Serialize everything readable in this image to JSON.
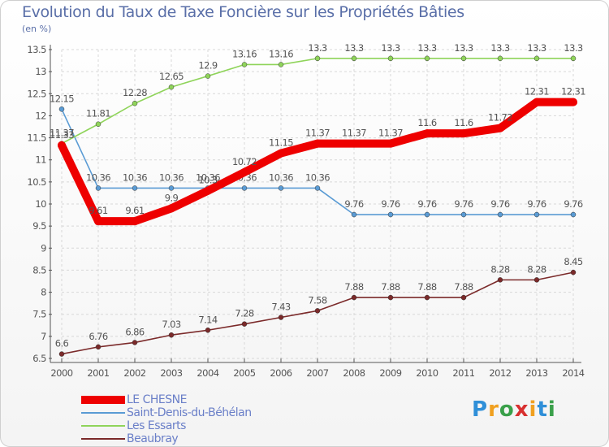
{
  "colors": {
    "title": "#5a6fa8",
    "axis": "#555555",
    "grid": "#d8d8d8",
    "label": "#555555"
  },
  "brand": {
    "text": "Proxiti",
    "letters": [
      "P",
      "r",
      "o",
      "x",
      "i",
      "t",
      "i"
    ],
    "colors": [
      "#2f8fd8",
      "#f0a020",
      "#3aa04a",
      "#d83030",
      "#f0a020",
      "#2f8fd8",
      "#3aa04a"
    ]
  },
  "chart_data": {
    "type": "line",
    "title": "Evolution du Taux de Taxe Foncière sur les Propriétés Bâties",
    "ylabel": "(en %)",
    "xlabel": "",
    "x": [
      "2000",
      "2001",
      "2002",
      "2003",
      "2004",
      "2005",
      "2006",
      "2007",
      "2008",
      "2009",
      "2010",
      "2011",
      "2012",
      "2013",
      "2014"
    ],
    "ylim": [
      6.5,
      13.5
    ],
    "yticks": [
      "6.5",
      "7",
      "7.5",
      "8",
      "8.5",
      "9",
      "9.5",
      "10",
      "10.5",
      "11",
      "11.5",
      "12",
      "12.5",
      "13",
      "13.5"
    ],
    "grid": true,
    "legend_position": "bottom-left",
    "series": [
      {
        "name": "Beaubray",
        "color": "#7b2a2a",
        "values": [
          6.6,
          6.76,
          6.86,
          7.03,
          7.14,
          7.28,
          7.43,
          7.58,
          7.88,
          7.88,
          7.88,
          7.88,
          8.28,
          8.28,
          8.45
        ],
        "labels": [
          "6.6",
          "6.76",
          "6.86",
          "7.03",
          "7.14",
          "7.28",
          "7.43",
          "7.58",
          "7.88",
          "7.88",
          "7.88",
          "7.88",
          "8.28",
          "8.28",
          "8.45"
        ]
      },
      {
        "name": "Saint-Denis-du-Béhélan",
        "color": "#5a9bd4",
        "values": [
          12.15,
          10.36,
          10.36,
          10.36,
          10.36,
          10.36,
          10.36,
          10.36,
          9.76,
          9.76,
          9.76,
          9.76,
          9.76,
          9.76,
          9.76
        ],
        "labels": [
          "12.15",
          "10.36",
          "10.36",
          "10.36",
          "10.36",
          "10.36",
          "10.36",
          "10.36",
          "9.76",
          "9.76",
          "9.76",
          "9.76",
          "9.76",
          "9.76",
          "9.76"
        ]
      },
      {
        "name": "Les Essarts",
        "color": "#8fd45a",
        "values": [
          11.37,
          11.81,
          12.28,
          12.65,
          12.9,
          13.16,
          13.16,
          13.3,
          13.3,
          13.3,
          13.3,
          13.3,
          13.3,
          13.3,
          13.3
        ],
        "labels": [
          "11.37",
          "11.81",
          "12.28",
          "12.65",
          "12.9",
          "13.16",
          "13.16",
          "13.3",
          "13.3",
          "13.3",
          "13.3",
          "13.3",
          "13.3",
          "13.3",
          "13.3"
        ]
      },
      {
        "name": "LE CHESNE",
        "color": "#ee0000",
        "values": [
          11.33,
          9.61,
          9.61,
          9.9,
          10.3,
          10.72,
          11.15,
          11.37,
          11.37,
          11.37,
          11.6,
          11.6,
          11.72,
          12.31,
          12.31
        ],
        "labels": [
          "11.33",
          "9.61",
          "9.61",
          "9.9",
          "10.3",
          "10.72",
          "11.15",
          "11.37",
          "11.37",
          "11.37",
          "11.6",
          "11.6",
          "11.72",
          "12.31",
          "12.31"
        ]
      }
    ],
    "legend": [
      "LE CHESNE",
      "Saint-Denis-du-Béhélan",
      "Les Essarts",
      "Beaubray"
    ]
  }
}
